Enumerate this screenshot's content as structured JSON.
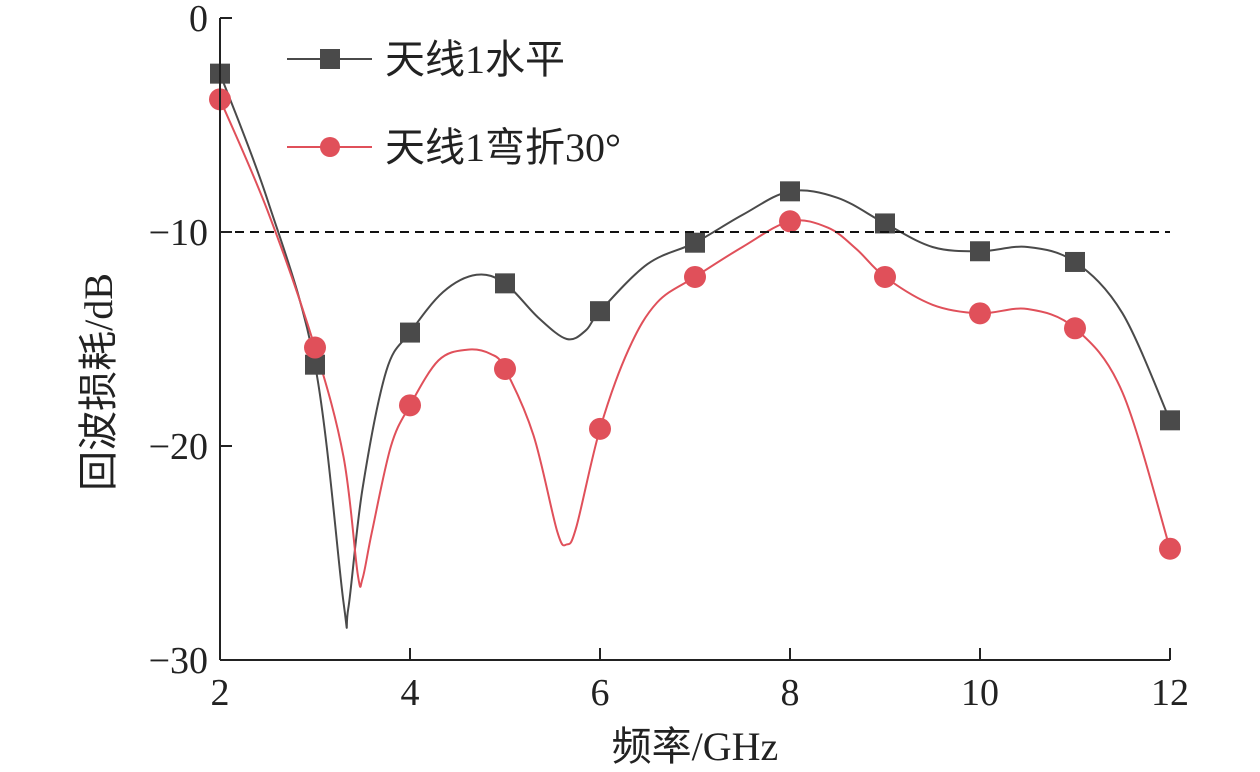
{
  "chart_data": {
    "type": "line",
    "xlabel": "频率/GHz",
    "ylabel": "回波损耗/dB",
    "xlim": [
      2,
      12
    ],
    "ylim": [
      -30,
      0
    ],
    "xticks": [
      "2",
      "4",
      "6",
      "8",
      "10",
      "12"
    ],
    "yticks": [
      "0",
      "−10",
      "−20",
      "−30"
    ],
    "reference_line": {
      "y": -10,
      "style": "dashed",
      "color": "#111111"
    },
    "grid": false,
    "legend_position": "top-left",
    "x": [
      2,
      3,
      4,
      5,
      6,
      7,
      8,
      9,
      10,
      11,
      12
    ],
    "series": [
      {
        "name": "天线1水平",
        "marker": "square",
        "color": "#4a4a4a",
        "values": [
          -2.6,
          -16.2,
          -14.7,
          -12.4,
          -13.7,
          -10.5,
          -8.1,
          -9.6,
          -10.9,
          -11.4,
          -18.8
        ],
        "curve": [
          [
            2,
            -2.6
          ],
          [
            2.5,
            -8.5
          ],
          [
            3,
            -16.2
          ],
          [
            3.3,
            -27.3
          ],
          [
            3.35,
            -27.6
          ],
          [
            3.5,
            -22.0
          ],
          [
            3.75,
            -16.5
          ],
          [
            4,
            -14.7
          ],
          [
            4.35,
            -12.8
          ],
          [
            4.7,
            -12.0
          ],
          [
            5,
            -12.4
          ],
          [
            5.35,
            -14.0
          ],
          [
            5.65,
            -15.0
          ],
          [
            5.85,
            -14.6
          ],
          [
            6,
            -13.7
          ],
          [
            6.5,
            -11.5
          ],
          [
            7,
            -10.5
          ],
          [
            7.5,
            -9.2
          ],
          [
            8,
            -8.1
          ],
          [
            8.5,
            -8.4
          ],
          [
            9,
            -9.6
          ],
          [
            9.5,
            -10.7
          ],
          [
            10,
            -10.9
          ],
          [
            10.5,
            -10.7
          ],
          [
            11,
            -11.4
          ],
          [
            11.5,
            -13.8
          ],
          [
            12,
            -18.8
          ]
        ]
      },
      {
        "name": "天线1弯折30°",
        "marker": "circle",
        "color": "#e0505a",
        "values": [
          -3.8,
          -15.4,
          -18.1,
          -16.4,
          -19.2,
          -12.1,
          -9.5,
          -12.1,
          -13.8,
          -14.5,
          -24.8
        ],
        "curve": [
          [
            2,
            -3.8
          ],
          [
            2.5,
            -9.0
          ],
          [
            3,
            -15.4
          ],
          [
            3.3,
            -20.5
          ],
          [
            3.45,
            -26.0
          ],
          [
            3.5,
            -26.2
          ],
          [
            3.6,
            -24.0
          ],
          [
            3.8,
            -20.0
          ],
          [
            4,
            -18.1
          ],
          [
            4.3,
            -16.0
          ],
          [
            4.6,
            -15.5
          ],
          [
            4.85,
            -15.7
          ],
          [
            5,
            -16.4
          ],
          [
            5.3,
            -19.5
          ],
          [
            5.55,
            -24.0
          ],
          [
            5.65,
            -24.6
          ],
          [
            5.75,
            -23.8
          ],
          [
            6,
            -19.2
          ],
          [
            6.3,
            -15.5
          ],
          [
            6.6,
            -13.3
          ],
          [
            7,
            -12.1
          ],
          [
            7.5,
            -10.7
          ],
          [
            8,
            -9.5
          ],
          [
            8.4,
            -9.8
          ],
          [
            8.7,
            -10.8
          ],
          [
            9,
            -12.1
          ],
          [
            9.5,
            -13.4
          ],
          [
            10,
            -13.8
          ],
          [
            10.5,
            -13.6
          ],
          [
            11,
            -14.5
          ],
          [
            11.5,
            -17.5
          ],
          [
            12,
            -24.8
          ]
        ]
      }
    ]
  }
}
